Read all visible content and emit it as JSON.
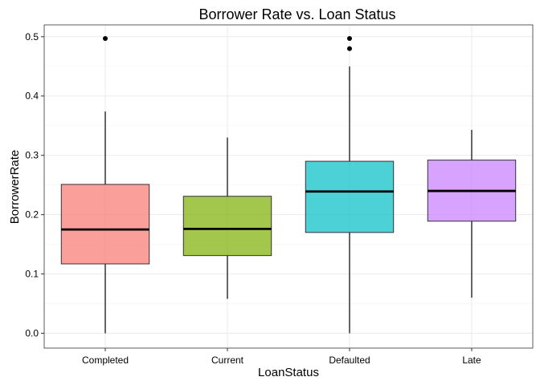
{
  "chart_data": {
    "type": "box",
    "title": "Borrower Rate vs. Loan Status",
    "xlabel": "LoanStatus",
    "ylabel": "BorrowerRate",
    "ylim": [
      -0.025,
      0.52
    ],
    "yticks": [
      0.0,
      0.1,
      0.2,
      0.3,
      0.4,
      0.5
    ],
    "ytick_labels": [
      "0.0",
      "0.1",
      "0.2",
      "0.3",
      "0.4",
      "0.5"
    ],
    "categories": [
      "Completed",
      "Current",
      "Defaulted",
      "Late"
    ],
    "grid": true,
    "boxes": [
      {
        "category": "Completed",
        "whisker_low": 0.0,
        "q1": 0.117,
        "median": 0.175,
        "q3": 0.251,
        "whisker_high": 0.374,
        "outliers": [
          0.497
        ],
        "color": "#f8766d"
      },
      {
        "category": "Current",
        "whisker_low": 0.058,
        "q1": 0.131,
        "median": 0.176,
        "q3": 0.231,
        "whisker_high": 0.33,
        "outliers": [],
        "color": "#7cae00"
      },
      {
        "category": "Defaulted",
        "whisker_low": 0.0,
        "q1": 0.17,
        "median": 0.239,
        "q3": 0.29,
        "whisker_high": 0.45,
        "outliers": [
          0.48,
          0.497
        ],
        "color": "#00bfc4"
      },
      {
        "category": "Late",
        "whisker_low": 0.06,
        "q1": 0.189,
        "median": 0.24,
        "q3": 0.292,
        "whisker_high": 0.343,
        "outliers": [],
        "color": "#c77cff"
      }
    ]
  }
}
